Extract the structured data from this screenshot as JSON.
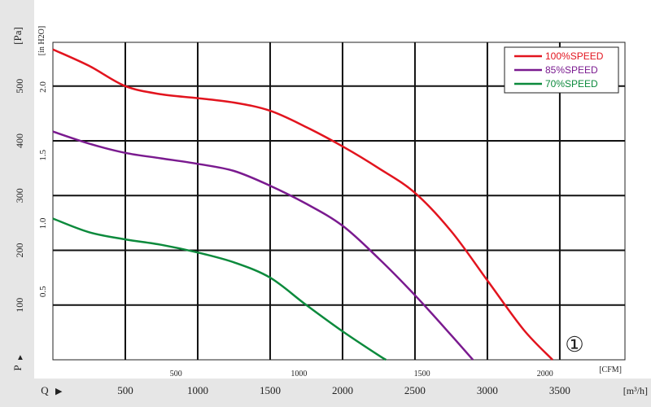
{
  "chart_data": {
    "type": "line",
    "title": "",
    "left_axis": {
      "label": "[Pa]",
      "range": [
        0,
        580
      ],
      "ticks": [
        "100",
        "200",
        "300",
        "400",
        "500"
      ],
      "tick_values": [
        100,
        200,
        300,
        400,
        500
      ],
      "marker_label": "P",
      "marker_symbol": "▲"
    },
    "right_inner_axis": {
      "label": "[in H2O]",
      "ticks": [
        "0.5",
        "1.0",
        "1.5",
        "2.0"
      ],
      "tick_values": [
        0.5,
        1.0,
        1.5,
        2.0
      ]
    },
    "x_axis_cmh": {
      "label": "[m³/h]",
      "range": [
        0,
        3950
      ],
      "ticks": [
        "500",
        "1000",
        "1500",
        "2000",
        "2500",
        "3000",
        "3500"
      ],
      "tick_values": [
        500,
        1000,
        1500,
        2000,
        2500,
        3000,
        3500
      ],
      "marker_label": "Q",
      "marker_symbol": "▶"
    },
    "x_axis_cfm": {
      "label": "[CFM]",
      "ticks": [
        "500",
        "1000",
        "1500",
        "2000"
      ],
      "tick_values": [
        500,
        1000,
        1500,
        2000
      ]
    },
    "grid": true,
    "legend": {
      "placement": "top-right"
    },
    "annotation": "①",
    "series": [
      {
        "name": "100%SPEED",
        "color": "#e2141e",
        "points": [
          [
            0,
            567
          ],
          [
            250,
            537
          ],
          [
            500,
            500
          ],
          [
            750,
            485
          ],
          [
            1000,
            478
          ],
          [
            1250,
            470
          ],
          [
            1500,
            455
          ],
          [
            1750,
            425
          ],
          [
            2000,
            390
          ],
          [
            2250,
            350
          ],
          [
            2500,
            305
          ],
          [
            2750,
            235
          ],
          [
            3000,
            145
          ],
          [
            3250,
            55
          ],
          [
            3450,
            0
          ]
        ]
      },
      {
        "name": "85%SPEED",
        "color": "#7a1a8f",
        "points": [
          [
            0,
            417
          ],
          [
            250,
            395
          ],
          [
            500,
            378
          ],
          [
            750,
            368
          ],
          [
            1000,
            358
          ],
          [
            1250,
            345
          ],
          [
            1500,
            318
          ],
          [
            1750,
            285
          ],
          [
            2000,
            245
          ],
          [
            2250,
            185
          ],
          [
            2500,
            118
          ],
          [
            2750,
            45
          ],
          [
            2900,
            0
          ]
        ]
      },
      {
        "name": "70%SPEED",
        "color": "#0c8a3c",
        "points": [
          [
            0,
            258
          ],
          [
            250,
            233
          ],
          [
            500,
            220
          ],
          [
            750,
            210
          ],
          [
            1000,
            196
          ],
          [
            1250,
            178
          ],
          [
            1500,
            150
          ],
          [
            1750,
            100
          ],
          [
            2000,
            52
          ],
          [
            2250,
            8
          ],
          [
            2300,
            0
          ]
        ]
      }
    ]
  }
}
